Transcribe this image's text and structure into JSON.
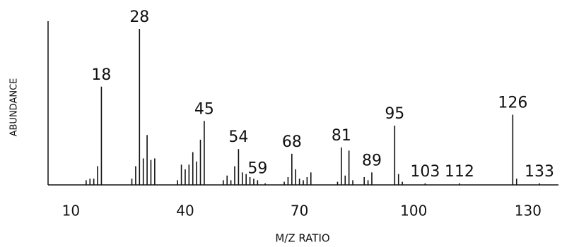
{
  "chart_data": {
    "type": "stick",
    "x_label": "M/Z RATIO",
    "y_label": "ABUNDANCE",
    "x": [
      14,
      15,
      16,
      17,
      18,
      26,
      27,
      28,
      29,
      30,
      31,
      32,
      38,
      39,
      40,
      41,
      42,
      43,
      44,
      45,
      50,
      51,
      52,
      53,
      54,
      55,
      56,
      57,
      58,
      59,
      61,
      66,
      67,
      68,
      69,
      70,
      71,
      72,
      73,
      80,
      81,
      82,
      83,
      84,
      87,
      88,
      89,
      95,
      96,
      97,
      103,
      112,
      126,
      127,
      133
    ],
    "values": [
      3,
      4,
      4,
      12,
      63,
      4,
      12,
      100,
      17,
      32,
      16,
      17,
      3,
      13,
      10,
      13,
      21,
      15,
      29,
      41,
      3,
      6,
      3,
      12,
      23,
      8,
      7,
      5,
      4,
      3,
      1,
      2,
      5,
      20,
      10,
      4,
      3,
      5,
      8,
      2,
      24,
      6,
      22,
      3,
      5,
      3,
      8,
      38,
      7,
      2,
      1,
      1,
      45,
      4,
      1
    ],
    "peak_labels": [
      18,
      28,
      45,
      54,
      59,
      68,
      81,
      89,
      95,
      103,
      112,
      126,
      133
    ],
    "color": "#111111",
    "xlim": [
      4,
      138
    ],
    "ylim": [
      0,
      105
    ],
    "xticks": [
      10,
      40,
      70,
      100,
      130
    ]
  }
}
